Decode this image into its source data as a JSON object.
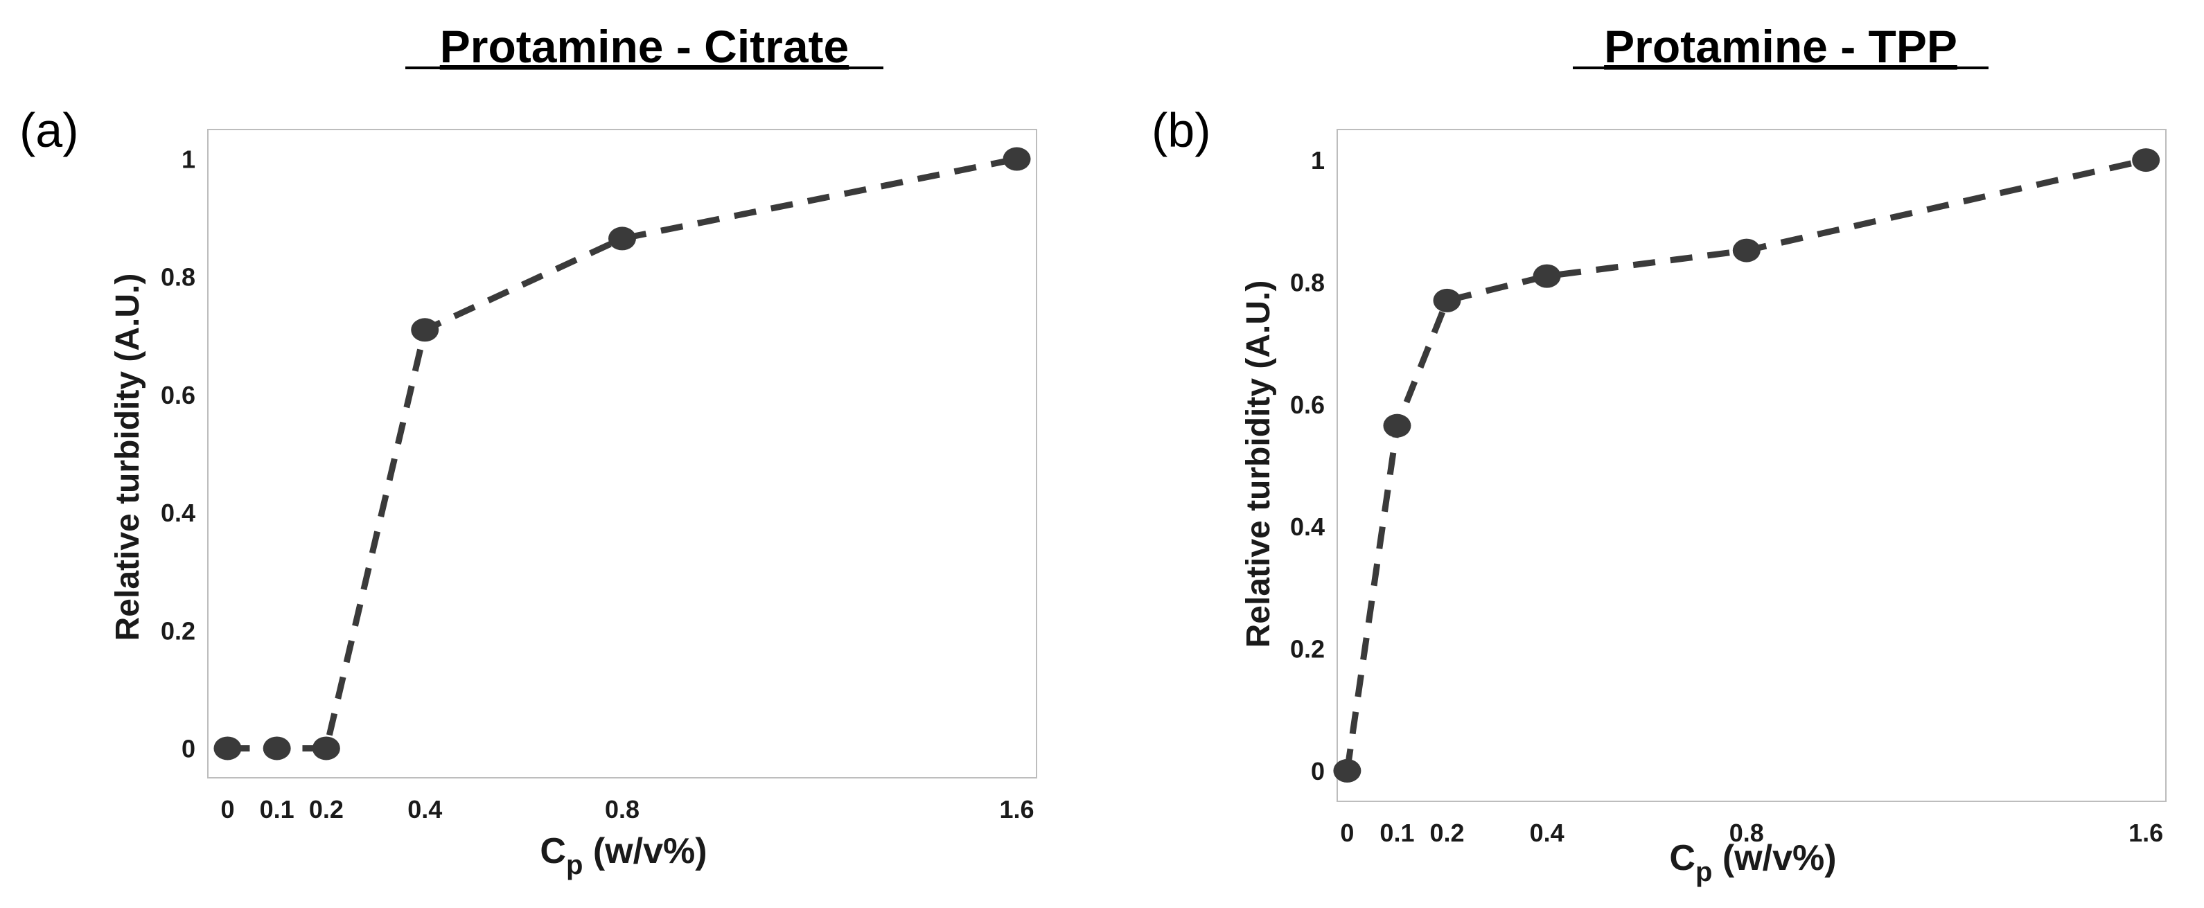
{
  "chart_data": [
    {
      "type": "line",
      "panel_label": "(a)",
      "title": "Protamine - Citrate",
      "xlabel": "C",
      "xlabel_sub": "p",
      "xlabel_rest": " (w/v%)",
      "ylabel": "Relative turbidity (A.U.)",
      "x": [
        0,
        0.1,
        0.2,
        0.4,
        0.8,
        1.6
      ],
      "y": [
        0,
        0,
        0,
        0.71,
        0.865,
        1.0
      ],
      "xticks": [
        0,
        0.1,
        0.2,
        0.4,
        0.8,
        1.6
      ],
      "xtick_labels": [
        "0",
        "0.1",
        "0.2",
        "0.4",
        "0.8",
        "1.6"
      ],
      "yticks": [
        0,
        0.2,
        0.4,
        0.6,
        0.8,
        1.0
      ],
      "ytick_labels": [
        "0",
        "0.2",
        "0.4",
        "0.6",
        "0.8",
        "1"
      ],
      "xlim": [
        -0.04,
        1.64
      ],
      "ylim": [
        -0.05,
        1.05
      ],
      "line_style": "dashed",
      "marker": "filled-circle",
      "color": "#3a3a3a"
    },
    {
      "type": "line",
      "panel_label": "(b)",
      "title": "Protamine - TPP",
      "xlabel": "C",
      "xlabel_sub": "p",
      "xlabel_rest": " (w/v%)",
      "ylabel": "Relative turbidity (A.U.)",
      "x": [
        0,
        0.1,
        0.2,
        0.4,
        0.8,
        1.6
      ],
      "y": [
        0,
        0.565,
        0.77,
        0.81,
        0.852,
        1.0
      ],
      "xticks": [
        0,
        0.1,
        0.2,
        0.4,
        0.8,
        1.6
      ],
      "xtick_labels": [
        "0",
        "0.1",
        "0.2",
        "0.4",
        "0.8",
        "1.6"
      ],
      "yticks": [
        0,
        0.2,
        0.4,
        0.6,
        0.8,
        1.0
      ],
      "ytick_labels": [
        "0",
        "0.2",
        "0.4",
        "0.6",
        "0.8",
        "1"
      ],
      "xlim": [
        -0.02,
        1.64
      ],
      "ylim": [
        -0.05,
        1.05
      ],
      "line_style": "dashed",
      "marker": "filled-circle",
      "color": "#3a3a3a"
    }
  ]
}
